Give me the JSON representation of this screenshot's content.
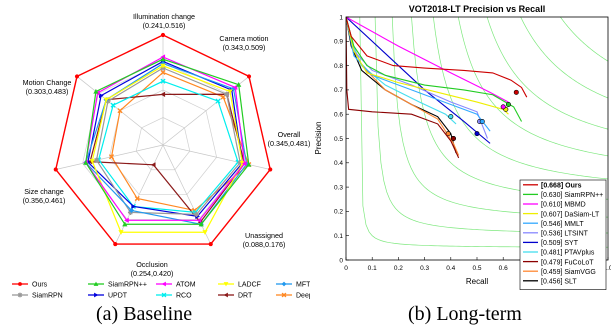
{
  "captions": {
    "left": "(a)  Baseline",
    "right": "(b)  Long-term"
  },
  "chart_data": [
    {
      "type": "radar",
      "axes": [
        {
          "label": "Illumination change",
          "range": "(0.241,0.516)"
        },
        {
          "label": "Camera motion",
          "range": "(0.343,0.509)"
        },
        {
          "label": "Overall",
          "range": "(0.345,0.481)"
        },
        {
          "label": "Unassigned",
          "range": "(0.088,0.176)"
        },
        {
          "label": "Occlusion",
          "range": "(0.254,0.420)"
        },
        {
          "label": "Size change",
          "range": "(0.356,0.461)"
        },
        {
          "label": "Motion Change",
          "range": "(0.303,0.483)"
        }
      ],
      "series": [
        {
          "name": "Ours",
          "color": "#ff0000",
          "marker": "dot",
          "values": [
            1.0,
            1.0,
            1.0,
            1.0,
            1.0,
            1.0,
            1.0
          ]
        },
        {
          "name": "SiamRPN++",
          "color": "#22cc22",
          "marker": "triangle",
          "values": [
            0.78,
            0.88,
            0.8,
            0.8,
            0.8,
            0.72,
            0.78
          ]
        },
        {
          "name": "ATOM",
          "color": "#ff00ff",
          "marker": "triangle-left",
          "values": [
            0.8,
            0.84,
            0.76,
            0.76,
            0.76,
            0.72,
            0.76
          ]
        },
        {
          "name": "LADCF",
          "color": "#ffff00",
          "marker": "triangle-down",
          "values": [
            0.72,
            0.78,
            0.74,
            0.88,
            0.88,
            0.66,
            0.66
          ]
        },
        {
          "name": "MFT",
          "color": "#2299ee",
          "marker": "diamond",
          "values": [
            0.74,
            0.82,
            0.78,
            0.8,
            0.66,
            0.72,
            0.66
          ]
        },
        {
          "name": "SiamRPN",
          "color": "#999999",
          "marker": "star",
          "values": [
            0.7,
            0.74,
            0.72,
            0.7,
            0.68,
            0.62,
            0.64
          ]
        },
        {
          "name": "UPDT",
          "color": "#0000dd",
          "marker": "triangle-right",
          "values": [
            0.76,
            0.8,
            0.74,
            0.72,
            0.62,
            0.7,
            0.72
          ]
        },
        {
          "name": "RCO",
          "color": "#00eeee",
          "marker": "x",
          "values": [
            0.58,
            0.64,
            0.7,
            0.68,
            0.62,
            0.6,
            0.58
          ]
        },
        {
          "name": "DRT",
          "color": "#8b1a1a",
          "marker": "triangle-left",
          "values": [
            0.46,
            0.74,
            0.76,
            0.78,
            0.2,
            0.68,
            0.66
          ]
        },
        {
          "name": "DeepSTRCF",
          "color": "#ff8822",
          "marker": "x",
          "values": [
            0.66,
            0.7,
            0.8,
            0.66,
            0.54,
            0.48,
            0.5
          ]
        }
      ]
    },
    {
      "type": "line",
      "title": "VOT2018-LT Precision vs Recall",
      "xlabel": "Recall",
      "ylabel": "Precision",
      "xlim": [
        0,
        1
      ],
      "ylim": [
        0,
        1
      ],
      "x_ticks": [
        "0",
        "0.1",
        "0.2",
        "0.3",
        "0.4",
        "0.5",
        "0.6",
        "0.7",
        "0.8",
        "0.9",
        "1.0"
      ],
      "y_ticks": [
        "0",
        "0.1",
        "0.2",
        "0.3",
        "0.4",
        "0.5",
        "0.6",
        "0.7",
        "0.8",
        "0.9",
        "1"
      ],
      "fscore_levels": [
        0.1,
        0.2,
        0.3,
        0.4,
        0.5,
        0.6,
        0.7,
        0.8,
        0.9
      ],
      "legend_position": "bottom-right",
      "series": [
        {
          "name": "[0.668] Ours",
          "color": "#cc0000",
          "bold": true,
          "points": [
            [
              0.0,
              1.0
            ],
            [
              0.02,
              0.92
            ],
            [
              0.08,
              0.84
            ],
            [
              0.18,
              0.8
            ],
            [
              0.3,
              0.79
            ],
            [
              0.45,
              0.78
            ],
            [
              0.56,
              0.77
            ],
            [
              0.63,
              0.74
            ],
            [
              0.67,
              0.71
            ],
            [
              0.69,
              0.67
            ]
          ],
          "marker": [
            0.65,
            0.69
          ]
        },
        {
          "name": "[0.630] SiamRPN++",
          "color": "#22cc22",
          "points": [
            [
              0.0,
              1.0
            ],
            [
              0.03,
              0.88
            ],
            [
              0.08,
              0.8
            ],
            [
              0.15,
              0.76
            ],
            [
              0.3,
              0.72
            ],
            [
              0.45,
              0.7
            ],
            [
              0.56,
              0.68
            ],
            [
              0.64,
              0.63
            ],
            [
              0.67,
              0.57
            ]
          ],
          "marker": [
            0.62,
            0.64
          ]
        },
        {
          "name": "[0.610] MBMD",
          "color": "#ff00ff",
          "points": [
            [
              0.0,
              1.0
            ],
            [
              0.2,
              0.88
            ],
            [
              0.4,
              0.77
            ],
            [
              0.55,
              0.69
            ],
            [
              0.62,
              0.65
            ]
          ],
          "marker": [
            0.6,
            0.63
          ]
        },
        {
          "name": "[0.607] DaSiam-LT",
          "color": "#eeee00",
          "points": [
            [
              0.0,
              1.0
            ],
            [
              0.03,
              0.86
            ],
            [
              0.08,
              0.77
            ],
            [
              0.2,
              0.73
            ],
            [
              0.35,
              0.69
            ],
            [
              0.5,
              0.65
            ],
            [
              0.6,
              0.62
            ],
            [
              0.62,
              0.6
            ]
          ],
          "marker": [
            0.61,
            0.62
          ]
        },
        {
          "name": "[0.546] MMLT",
          "color": "#33aaff",
          "points": [
            [
              0.0,
              1.0
            ],
            [
              0.03,
              0.84
            ],
            [
              0.1,
              0.76
            ],
            [
              0.25,
              0.7
            ],
            [
              0.4,
              0.64
            ],
            [
              0.5,
              0.6
            ],
            [
              0.55,
              0.53
            ]
          ],
          "marker": [
            0.52,
            0.57
          ]
        },
        {
          "name": "[0.536] LTSINT",
          "color": "#8888ff",
          "points": [
            [
              0.0,
              1.0
            ],
            [
              0.03,
              0.86
            ],
            [
              0.1,
              0.78
            ],
            [
              0.25,
              0.72
            ],
            [
              0.4,
              0.65
            ],
            [
              0.5,
              0.61
            ],
            [
              0.54,
              0.5
            ]
          ],
          "marker": [
            0.51,
            0.57
          ]
        },
        {
          "name": "[0.509] SYT",
          "color": "#0000cc",
          "points": [
            [
              0.0,
              1.0
            ],
            [
              0.15,
              0.85
            ],
            [
              0.3,
              0.7
            ],
            [
              0.45,
              0.57
            ],
            [
              0.55,
              0.48
            ]
          ],
          "marker": [
            0.5,
            0.52
          ]
        },
        {
          "name": "[0.481] PTAVplus",
          "color": "#44ddee",
          "points": [
            [
              0.0,
              1.0
            ],
            [
              0.02,
              0.9
            ],
            [
              0.06,
              0.8
            ],
            [
              0.15,
              0.72
            ],
            [
              0.28,
              0.65
            ],
            [
              0.38,
              0.6
            ],
            [
              0.42,
              0.56
            ]
          ],
          "marker": [
            0.4,
            0.59
          ]
        },
        {
          "name": "[0.479] FuCoLoT",
          "color": "#8b0000",
          "points": [
            [
              0.0,
              1.0
            ],
            [
              0.003,
              0.7
            ],
            [
              0.01,
              0.62
            ],
            [
              0.1,
              0.61
            ],
            [
              0.25,
              0.6
            ],
            [
              0.35,
              0.56
            ],
            [
              0.4,
              0.49
            ],
            [
              0.43,
              0.42
            ]
          ],
          "marker": [
            0.41,
            0.5
          ]
        },
        {
          "name": "[0.459] SiamVGG",
          "color": "#ff8833",
          "points": [
            [
              0.0,
              1.0
            ],
            [
              0.02,
              0.9
            ],
            [
              0.06,
              0.8
            ],
            [
              0.15,
              0.7
            ],
            [
              0.25,
              0.64
            ],
            [
              0.35,
              0.58
            ],
            [
              0.41,
              0.48
            ],
            [
              0.43,
              0.43
            ]
          ],
          "marker": [
            0.39,
            0.52
          ]
        },
        {
          "name": "[0.456] SLT",
          "color": "#000000",
          "points": [
            [
              0.0,
              1.0
            ],
            [
              0.02,
              0.88
            ],
            [
              0.06,
              0.78
            ],
            [
              0.15,
              0.7
            ],
            [
              0.25,
              0.64
            ],
            [
              0.35,
              0.59
            ],
            [
              0.4,
              0.52
            ],
            [
              0.42,
              0.44
            ]
          ],
          "marker": [
            0.41,
            0.5
          ]
        }
      ]
    }
  ]
}
